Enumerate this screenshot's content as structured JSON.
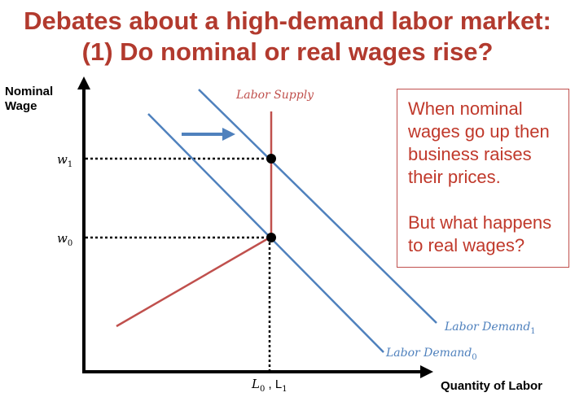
{
  "title": {
    "line1": "Debates about a high-demand labor market:",
    "line2": "(1) Do nominal or real wages rise?"
  },
  "axes": {
    "y_label_line1": "Nominal",
    "y_label_line2": "Wage",
    "x_label": "Quantity of Labor"
  },
  "curves": {
    "supply_label": "Labor Supply",
    "demand0_label": "Labor Demand",
    "demand0_sub": "0",
    "demand1_label": "Labor Demand",
    "demand1_sub": "1"
  },
  "ticks": {
    "w1": "w",
    "w1_sub": "1",
    "w0": "w",
    "w0_sub": "0",
    "L0": "L",
    "L0_sub": "0",
    "sep": " , ",
    "L1": "L",
    "L1_sub": "1"
  },
  "callout": {
    "text1": "When nominal wages go up then business raises their prices.",
    "text2": "But what happens to real wages?"
  },
  "colors": {
    "title": "#b23a2e",
    "supply": "#c0504d",
    "demand": "#4f81bd",
    "callout_text": "#c0392b"
  }
}
